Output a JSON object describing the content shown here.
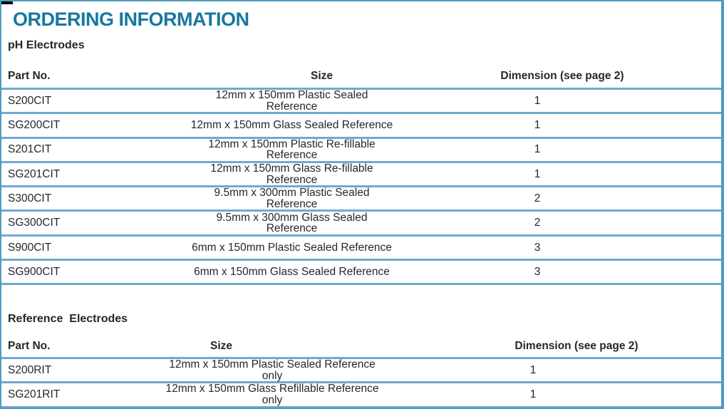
{
  "page": {
    "title": "ORDERING INFORMATION"
  },
  "colors": {
    "accent_title": "#17789F",
    "rule_line": "#6FAACB",
    "outer_border": "#4E9AC2",
    "text": "#26262E"
  },
  "tables": [
    {
      "heading": "pH Electrodes",
      "columns": [
        "Part No.",
        "Size",
        "Dimension (see page 2)"
      ],
      "rows": [
        [
          "S200CIT",
          "12mm x 150mm Plastic Sealed Reference",
          "1"
        ],
        [
          "SG200CIT",
          "12mm x 150mm Glass Sealed Reference",
          "1"
        ],
        [
          "S201CIT",
          "12mm x 150mm Plastic Re-fillable Reference",
          "1"
        ],
        [
          "SG201CIT",
          "12mm x 150mm Glass Re-fillable Reference",
          "1"
        ],
        [
          "S300CIT",
          "9.5mm x 300mm Plastic Sealed Reference",
          "2"
        ],
        [
          "SG300CIT",
          "9.5mm x 300mm Glass Sealed Reference",
          "2"
        ],
        [
          "S900CIT",
          "6mm x 150mm Plastic Sealed Reference",
          "3"
        ],
        [
          "SG900CIT",
          "6mm x 150mm Glass Sealed Reference",
          "3"
        ]
      ]
    },
    {
      "heading": "Reference  Electrodes",
      "columns": [
        "Part No.",
        "Size",
        "Dimension (see page 2)"
      ],
      "rows": [
        [
          "S200RIT",
          "12mm x 150mm Plastic Sealed Reference only",
          "1"
        ],
        [
          "SG201RIT",
          "12mm x 150mm Glass Refillable Reference only",
          "1"
        ]
      ]
    }
  ]
}
